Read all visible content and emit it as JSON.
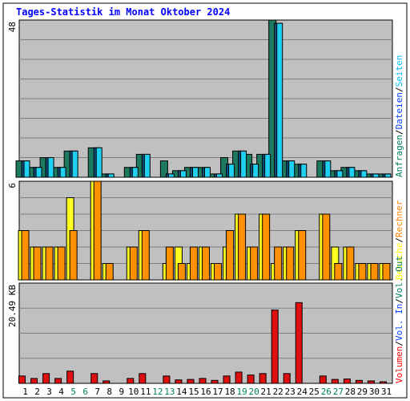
{
  "chart_data": {
    "type": "bar",
    "title": "Tages-Statistik im Monat Oktober 2024",
    "categories": [
      "1",
      "2",
      "3",
      "4",
      "5",
      "6",
      "7",
      "8",
      "9",
      "10",
      "11",
      "12",
      "13",
      "14",
      "15",
      "16",
      "17",
      "18",
      "19",
      "20",
      "21",
      "22",
      "23",
      "24",
      "25",
      "26",
      "27",
      "28",
      "29",
      "30",
      "31"
    ],
    "weekend_days": [
      "5",
      "6",
      "12",
      "13",
      "19",
      "20",
      "26",
      "27"
    ],
    "panels": [
      {
        "id": "requests",
        "ymax": 48,
        "ytick_label": "48",
        "legend": [
          {
            "label": "Anfragen",
            "color": "#008060"
          },
          {
            "label": "Dateien",
            "color": "#0040ff"
          },
          {
            "label": "Seiten",
            "color": "#00c0ff"
          }
        ],
        "series": [
          {
            "name": "Anfragen",
            "color": "#1d7a60",
            "values": [
              5,
              3,
              6,
              3,
              8,
              0,
              9,
              1,
              0,
              3,
              7,
              0,
              5,
              2,
              3,
              3,
              1,
              6,
              8,
              7,
              7,
              48,
              5,
              4,
              0,
              5,
              2,
              3,
              2,
              1,
              1
            ]
          },
          {
            "name": "Dateien",
            "color": "#0a4f80",
            "values": [
              5,
              3,
              6,
              3,
              8,
              0,
              9,
              1,
              0,
              3,
              7,
              0,
              1,
              2,
              3,
              3,
              1,
              4,
              8,
              4,
              7,
              47,
              5,
              4,
              0,
              5,
              2,
              3,
              2,
              1,
              1
            ]
          },
          {
            "name": "Seiten",
            "color": "#20d0f0",
            "values": [
              5,
              3,
              6,
              3,
              8,
              0,
              9,
              1,
              0,
              3,
              7,
              0,
              1,
              2,
              3,
              3,
              1,
              4,
              8,
              4,
              7,
              47,
              5,
              4,
              0,
              5,
              2,
              3,
              2,
              1,
              1
            ]
          }
        ]
      },
      {
        "id": "visits",
        "ymax": 6,
        "ytick_label": "6",
        "legend": [
          {
            "label": "Besuche",
            "color": "#ffff00"
          },
          {
            "label": "Rechner",
            "color": "#ff8000"
          }
        ],
        "series": [
          {
            "name": "Besuche",
            "color": "#ffff20",
            "values": [
              3,
              2,
              2,
              2,
              5,
              0,
              6,
              1,
              0,
              2,
              3,
              0,
              1,
              2,
              1,
              2,
              1,
              2,
              4,
              2,
              4,
              1,
              2,
              3,
              0,
              4,
              2,
              2,
              1,
              1,
              1
            ]
          },
          {
            "name": "Rechner",
            "color": "#ff9000",
            "values": [
              3,
              2,
              2,
              2,
              3,
              0,
              6,
              1,
              0,
              2,
              3,
              0,
              2,
              1,
              2,
              2,
              1,
              3,
              4,
              2,
              4,
              2,
              2,
              3,
              0,
              4,
              1,
              2,
              1,
              1,
              1
            ]
          }
        ]
      },
      {
        "id": "volume",
        "ymax": 20.49,
        "ytick_label": "20.49 KB",
        "legend": [
          {
            "label": "Volumen",
            "color": "#ff0000"
          },
          {
            "label": "Vol. In",
            "color": "#0040ff"
          },
          {
            "label": "Vol. Out",
            "color": "#008060"
          }
        ],
        "series": [
          {
            "name": "Volumen",
            "color": "#e01010",
            "values": [
              1.5,
              1.0,
              2.0,
              1.0,
              2.5,
              0,
              2.0,
              0.5,
              0,
              1.0,
              2.0,
              0,
              1.5,
              0.7,
              0.8,
              1.0,
              0.6,
              1.5,
              2.3,
              1.7,
              2.0,
              15.0,
              2.0,
              16.5,
              0,
              1.5,
              0.8,
              0.9,
              0.6,
              0.5,
              0.3
            ]
          }
        ]
      }
    ]
  }
}
